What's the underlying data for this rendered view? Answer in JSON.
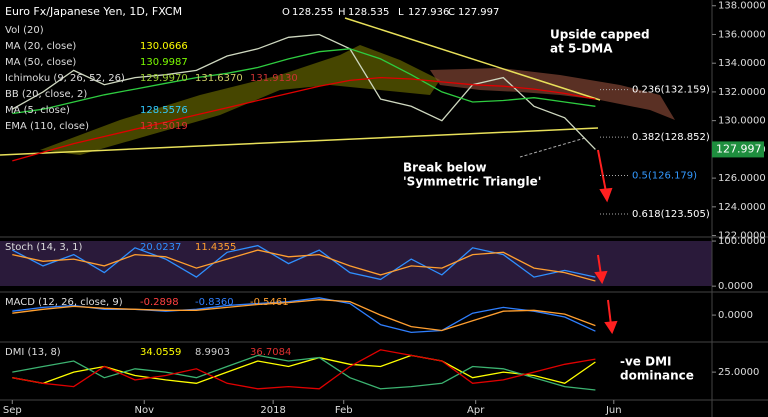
{
  "header": {
    "title": "Euro Fx/Japanese Yen, 1D, FXCM",
    "ohlc": [
      {
        "label": "O",
        "value": "128.255"
      },
      {
        "label": "H",
        "value": "128.535"
      },
      {
        "label": "L",
        "value": "127.936"
      },
      {
        "label": "C",
        "value": "127.997"
      }
    ]
  },
  "chart_data": [
    {
      "type": "line",
      "x": [
        0,
        10,
        20,
        30,
        40,
        50,
        60,
        70,
        80,
        90,
        100,
        110,
        120,
        130,
        140,
        150,
        160,
        170,
        180,
        190
      ],
      "xlim": [
        -4,
        228
      ],
      "xticks": [
        {
          "value": 0,
          "label": "Sep"
        },
        {
          "value": 43,
          "label": "Nov"
        },
        {
          "value": 85,
          "label": "2018"
        },
        {
          "value": 108,
          "label": "Feb"
        },
        {
          "value": 151,
          "label": "Apr"
        },
        {
          "value": 196,
          "label": "Jun"
        }
      ],
      "ylim": [
        121.9,
        138.4
      ],
      "yticks": [
        {
          "value": 122,
          "label": "122.0000"
        },
        {
          "value": 124,
          "label": "124.0000"
        },
        {
          "value": 126,
          "label": "126.0000"
        },
        {
          "value": 128,
          "label": "128.0000"
        },
        {
          "value": 130,
          "label": "130.0000"
        },
        {
          "value": 132,
          "label": "132.0000"
        },
        {
          "value": 134,
          "label": "134.0000"
        },
        {
          "value": 136,
          "label": "136.0000"
        },
        {
          "value": 138,
          "label": "138.0000"
        }
      ],
      "series": [
        {
          "color": "#cfd8c0",
          "values": [
            130.8,
            132.0,
            133.5,
            132.5,
            133.0,
            133.2,
            133.5,
            134.5,
            135.0,
            135.8,
            136.0,
            135.0,
            131.5,
            131.0,
            130.0,
            132.5,
            133.0,
            131.0,
            130.2,
            127.997
          ]
        },
        {
          "color": "#2ecc40",
          "values": [
            130.5,
            130.8,
            131.3,
            131.8,
            132.2,
            132.6,
            133.0,
            133.3,
            133.7,
            134.3,
            134.8,
            135.0,
            134.3,
            133.2,
            132.0,
            131.3,
            131.4,
            131.6,
            131.3,
            130.9987
          ]
        },
        {
          "color": "#e00000",
          "values": [
            127.2,
            127.8,
            128.4,
            128.9,
            129.4,
            129.9,
            130.4,
            130.9,
            131.4,
            131.9,
            132.4,
            132.8,
            133.0,
            132.9,
            132.7,
            132.5,
            132.4,
            132.2,
            131.9,
            131.5019
          ]
        }
      ],
      "legend": [
        {
          "name": "Vol (20)",
          "values": [],
          "colors": []
        },
        {
          "name": "MA (20, close)",
          "values": [
            "130.0666"
          ],
          "colors": [
            "#ffff00"
          ]
        },
        {
          "name": "MA (50, close)",
          "values": [
            "130.9987"
          ],
          "colors": [
            "#7CFC00"
          ]
        },
        {
          "name": "Ichimoku (9, 26, 52, 26)",
          "values": [
            "129.9970",
            "131.6370",
            "131.9130"
          ],
          "colors": [
            "#9acd32",
            "#cccc66",
            "#cc3333"
          ]
        },
        {
          "name": "BB (20, close, 2)",
          "values": [],
          "colors": []
        },
        {
          "name": "MA (5, close)",
          "values": [
            "128.5576"
          ],
          "colors": [
            "#33ccff"
          ]
        },
        {
          "name": "EMA (110, close)",
          "values": [
            "131.5019"
          ],
          "colors": [
            "#e03030"
          ]
        }
      ],
      "fib": {
        "values": [
          132.159,
          128.852,
          126.179,
          123.505
        ],
        "value_labels": [
          "0.236(132.159)",
          "0.382(128.852)",
          "0.5(126.179)",
          "0.618(123.505)"
        ],
        "label_colors": [
          "#ffffff",
          "#ffffff",
          "#3399ff",
          "#ffffff"
        ]
      },
      "last_price": 127.997,
      "annotations": [
        {
          "lines": [
            "Upside capped",
            "at 5-DMA"
          ]
        },
        {
          "lines": [
            "Break below",
            "'Symmetric Triangle'"
          ]
        }
      ]
    },
    {
      "type": "line",
      "x": [
        0,
        10,
        20,
        30,
        40,
        50,
        60,
        70,
        80,
        90,
        100,
        110,
        120,
        130,
        140,
        150,
        160,
        170,
        180,
        190
      ],
      "xlim": [
        -4,
        228
      ],
      "ylim": [
        -13,
        109
      ],
      "yticks": [
        {
          "value": 0,
          "label": "0.0000"
        },
        {
          "value": 100,
          "label": "100.0000"
        }
      ],
      "series": [
        {
          "color": "#2f8fff",
          "values": [
            80,
            45,
            70,
            30,
            85,
            60,
            20,
            75,
            90,
            50,
            80,
            30,
            15,
            60,
            25,
            85,
            70,
            20,
            35,
            20.0237
          ]
        },
        {
          "color": "#ff9f30",
          "values": [
            70,
            55,
            60,
            45,
            70,
            65,
            40,
            60,
            80,
            65,
            70,
            45,
            25,
            45,
            40,
            70,
            75,
            40,
            30,
            11.4355
          ]
        }
      ],
      "legend": [
        {
          "name": "Stoch (14, 3, 1)",
          "values": [
            "20.0237",
            "11.4355"
          ],
          "colors": [
            "#2f8fff",
            "#ff9f30"
          ]
        }
      ]
    },
    {
      "type": "line",
      "x": [
        0,
        10,
        20,
        30,
        40,
        50,
        60,
        70,
        80,
        90,
        100,
        110,
        120,
        130,
        140,
        150,
        160,
        170,
        180,
        190
      ],
      "xlim": [
        -4,
        228
      ],
      "ylim": [
        -1.4,
        1.2
      ],
      "yticks": [
        {
          "value": 0,
          "label": "0.0000"
        }
      ],
      "series": [
        {
          "color": "#2f7fff",
          "values": [
            0.2,
            0.4,
            0.5,
            0.3,
            0.3,
            0.2,
            0.3,
            0.5,
            0.6,
            0.7,
            0.9,
            0.6,
            -0.5,
            -0.9,
            -0.8,
            0.1,
            0.4,
            0.2,
            -0.1,
            -0.836
          ]
        },
        {
          "color": "#ff9f30",
          "values": [
            0.1,
            0.3,
            0.45,
            0.35,
            0.3,
            0.25,
            0.25,
            0.4,
            0.55,
            0.65,
            0.8,
            0.7,
            0.0,
            -0.6,
            -0.8,
            -0.3,
            0.2,
            0.25,
            0.05,
            -0.5461
          ]
        }
      ],
      "legend": [
        {
          "name": "MACD (12, 26, close, 9)",
          "values": [
            "-0.2898",
            "-0.8360",
            "-0.5461"
          ],
          "colors": [
            "#ff4040",
            "#2f7fff",
            "#ff9f30"
          ]
        }
      ]
    },
    {
      "type": "line",
      "x": [
        0,
        10,
        20,
        30,
        40,
        50,
        60,
        70,
        80,
        90,
        100,
        110,
        120,
        130,
        140,
        150,
        160,
        170,
        180,
        190
      ],
      "xlim": [
        -4,
        228
      ],
      "ylim": [
        0,
        52
      ],
      "yticks": [
        {
          "value": 25,
          "label": "25.0000"
        }
      ],
      "series": [
        {
          "color": "#ffff00",
          "values": [
            20,
            15,
            25,
            30,
            22,
            18,
            15,
            25,
            35,
            30,
            38,
            32,
            30,
            40,
            35,
            20,
            25,
            22,
            15,
            34.0559
          ]
        },
        {
          "color": "#3cb371",
          "values": [
            25,
            30,
            35,
            20,
            28,
            25,
            20,
            30,
            40,
            35,
            38,
            20,
            10,
            12,
            15,
            30,
            28,
            20,
            12,
            8.9903
          ]
        },
        {
          "color": "#e00000",
          "values": [
            20,
            15,
            12,
            30,
            18,
            22,
            28,
            15,
            10,
            12,
            10,
            30,
            45,
            40,
            35,
            15,
            18,
            25,
            32,
            36.7084
          ]
        }
      ],
      "legend": [
        {
          "name": "DMI (13, 8)",
          "values": [
            "34.0559",
            "8.9903",
            "36.7084"
          ],
          "colors": [
            "#ffff00",
            "#cccccc",
            "#e03030"
          ]
        }
      ],
      "annotations": [
        {
          "lines": [
            "-ve DMI",
            "dominance"
          ]
        }
      ]
    }
  ]
}
